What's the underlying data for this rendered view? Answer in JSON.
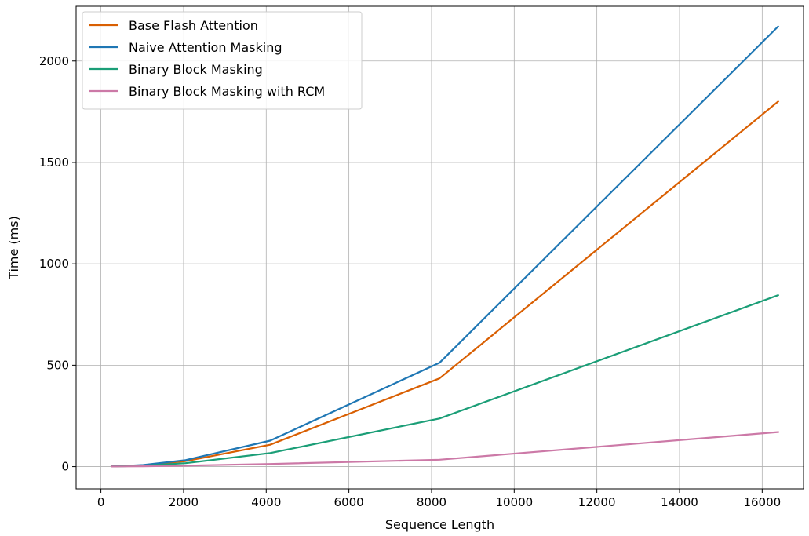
{
  "chart_data": {
    "type": "line",
    "title": "",
    "xlabel": "Sequence Length",
    "ylabel": "Time (ms)",
    "xlim": [
      -600,
      17000
    ],
    "ylim": [
      -110,
      2270
    ],
    "xticks": [
      0,
      2000,
      4000,
      6000,
      8000,
      10000,
      12000,
      14000,
      16000
    ],
    "yticks": [
      0,
      500,
      1000,
      1500,
      2000
    ],
    "grid": true,
    "legend": "top-left",
    "x": [
      256,
      512,
      1024,
      2048,
      4096,
      8192,
      16384
    ],
    "series": [
      {
        "name": "Base Flash Attention",
        "color": "#d95f02",
        "values": [
          1,
          3,
          7,
          27,
          108,
          435,
          1800
        ]
      },
      {
        "name": "Naive Attention Masking",
        "color": "#1f77b4",
        "values": [
          1,
          3,
          8,
          32,
          128,
          512,
          2170
        ]
      },
      {
        "name": "Binary Block Masking",
        "color": "#1b9e77",
        "values": [
          1,
          2,
          5,
          17,
          67,
          237,
          845
        ]
      },
      {
        "name": "Binary Block Masking with RCM",
        "color": "#cc79a7",
        "values": [
          0.5,
          1,
          2,
          5,
          13,
          34,
          170
        ]
      }
    ]
  }
}
